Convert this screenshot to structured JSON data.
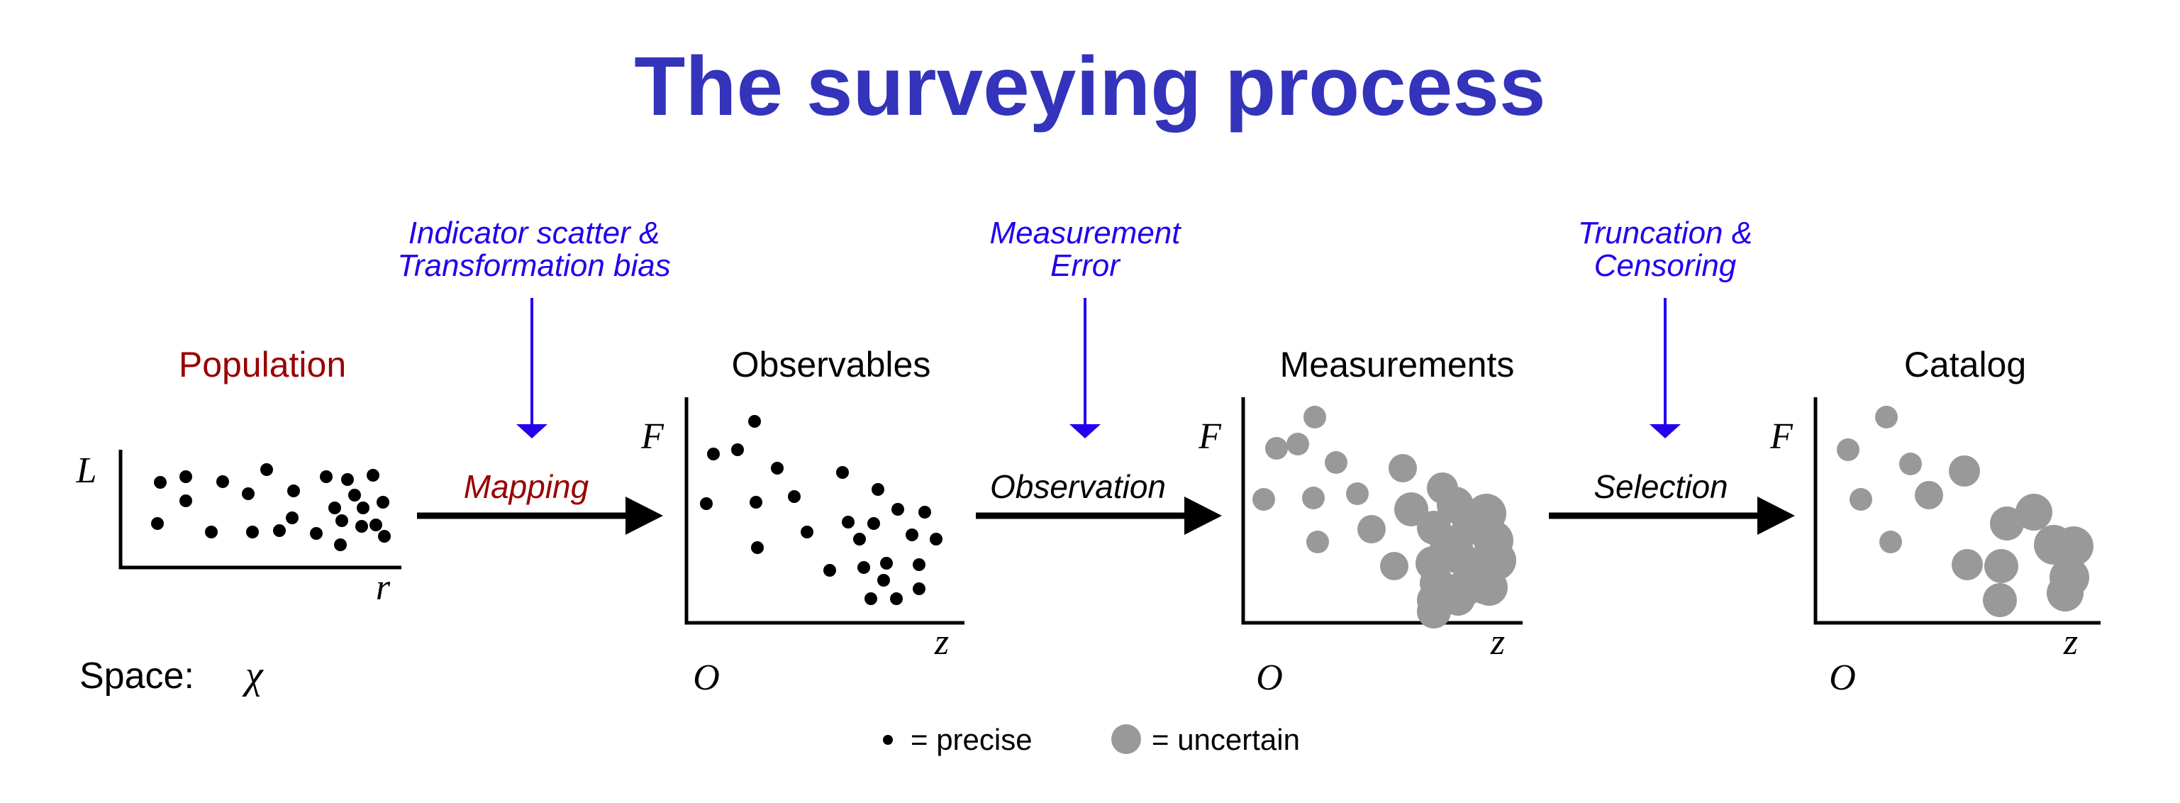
{
  "colors": {
    "title": "#3333bb",
    "annotation": "#2200ee",
    "red_label": "#990000",
    "precise_dot": "#000000",
    "uncertain_dot": "#999999",
    "axis": "#000000"
  },
  "title": "The surveying process",
  "annotations": {
    "left": [
      "Indicator scatter &",
      "Transformation bias"
    ],
    "middle": [
      "Measurement",
      "Error"
    ],
    "right": [
      "Truncation &",
      "Censoring"
    ]
  },
  "processes": {
    "mapping": "Mapping",
    "observation": "Observation",
    "selection": "Selection"
  },
  "panels": {
    "population": {
      "title": "Population",
      "y_label": "L",
      "x_label": "r"
    },
    "observables": {
      "title": "Observables",
      "y_label": "F",
      "x_label": "z",
      "origin_label": "O"
    },
    "measurements": {
      "title": "Measurements",
      "y_label": "F",
      "x_label": "z",
      "origin_label": "O"
    },
    "catalog": {
      "title": "Catalog",
      "y_label": "F",
      "x_label": "z",
      "origin_label": "O"
    }
  },
  "space": {
    "label": "Space:",
    "symbol": "χ"
  },
  "legend": {
    "precise": "= precise",
    "uncertain": "= uncertain"
  },
  "icons": {
    "annotation_arrows": "arrow-down-icon",
    "process_arrows": "arrow-right-icon",
    "legend_precise": "small-dot-icon",
    "legend_uncertain": "large-gray-dot-icon"
  }
}
